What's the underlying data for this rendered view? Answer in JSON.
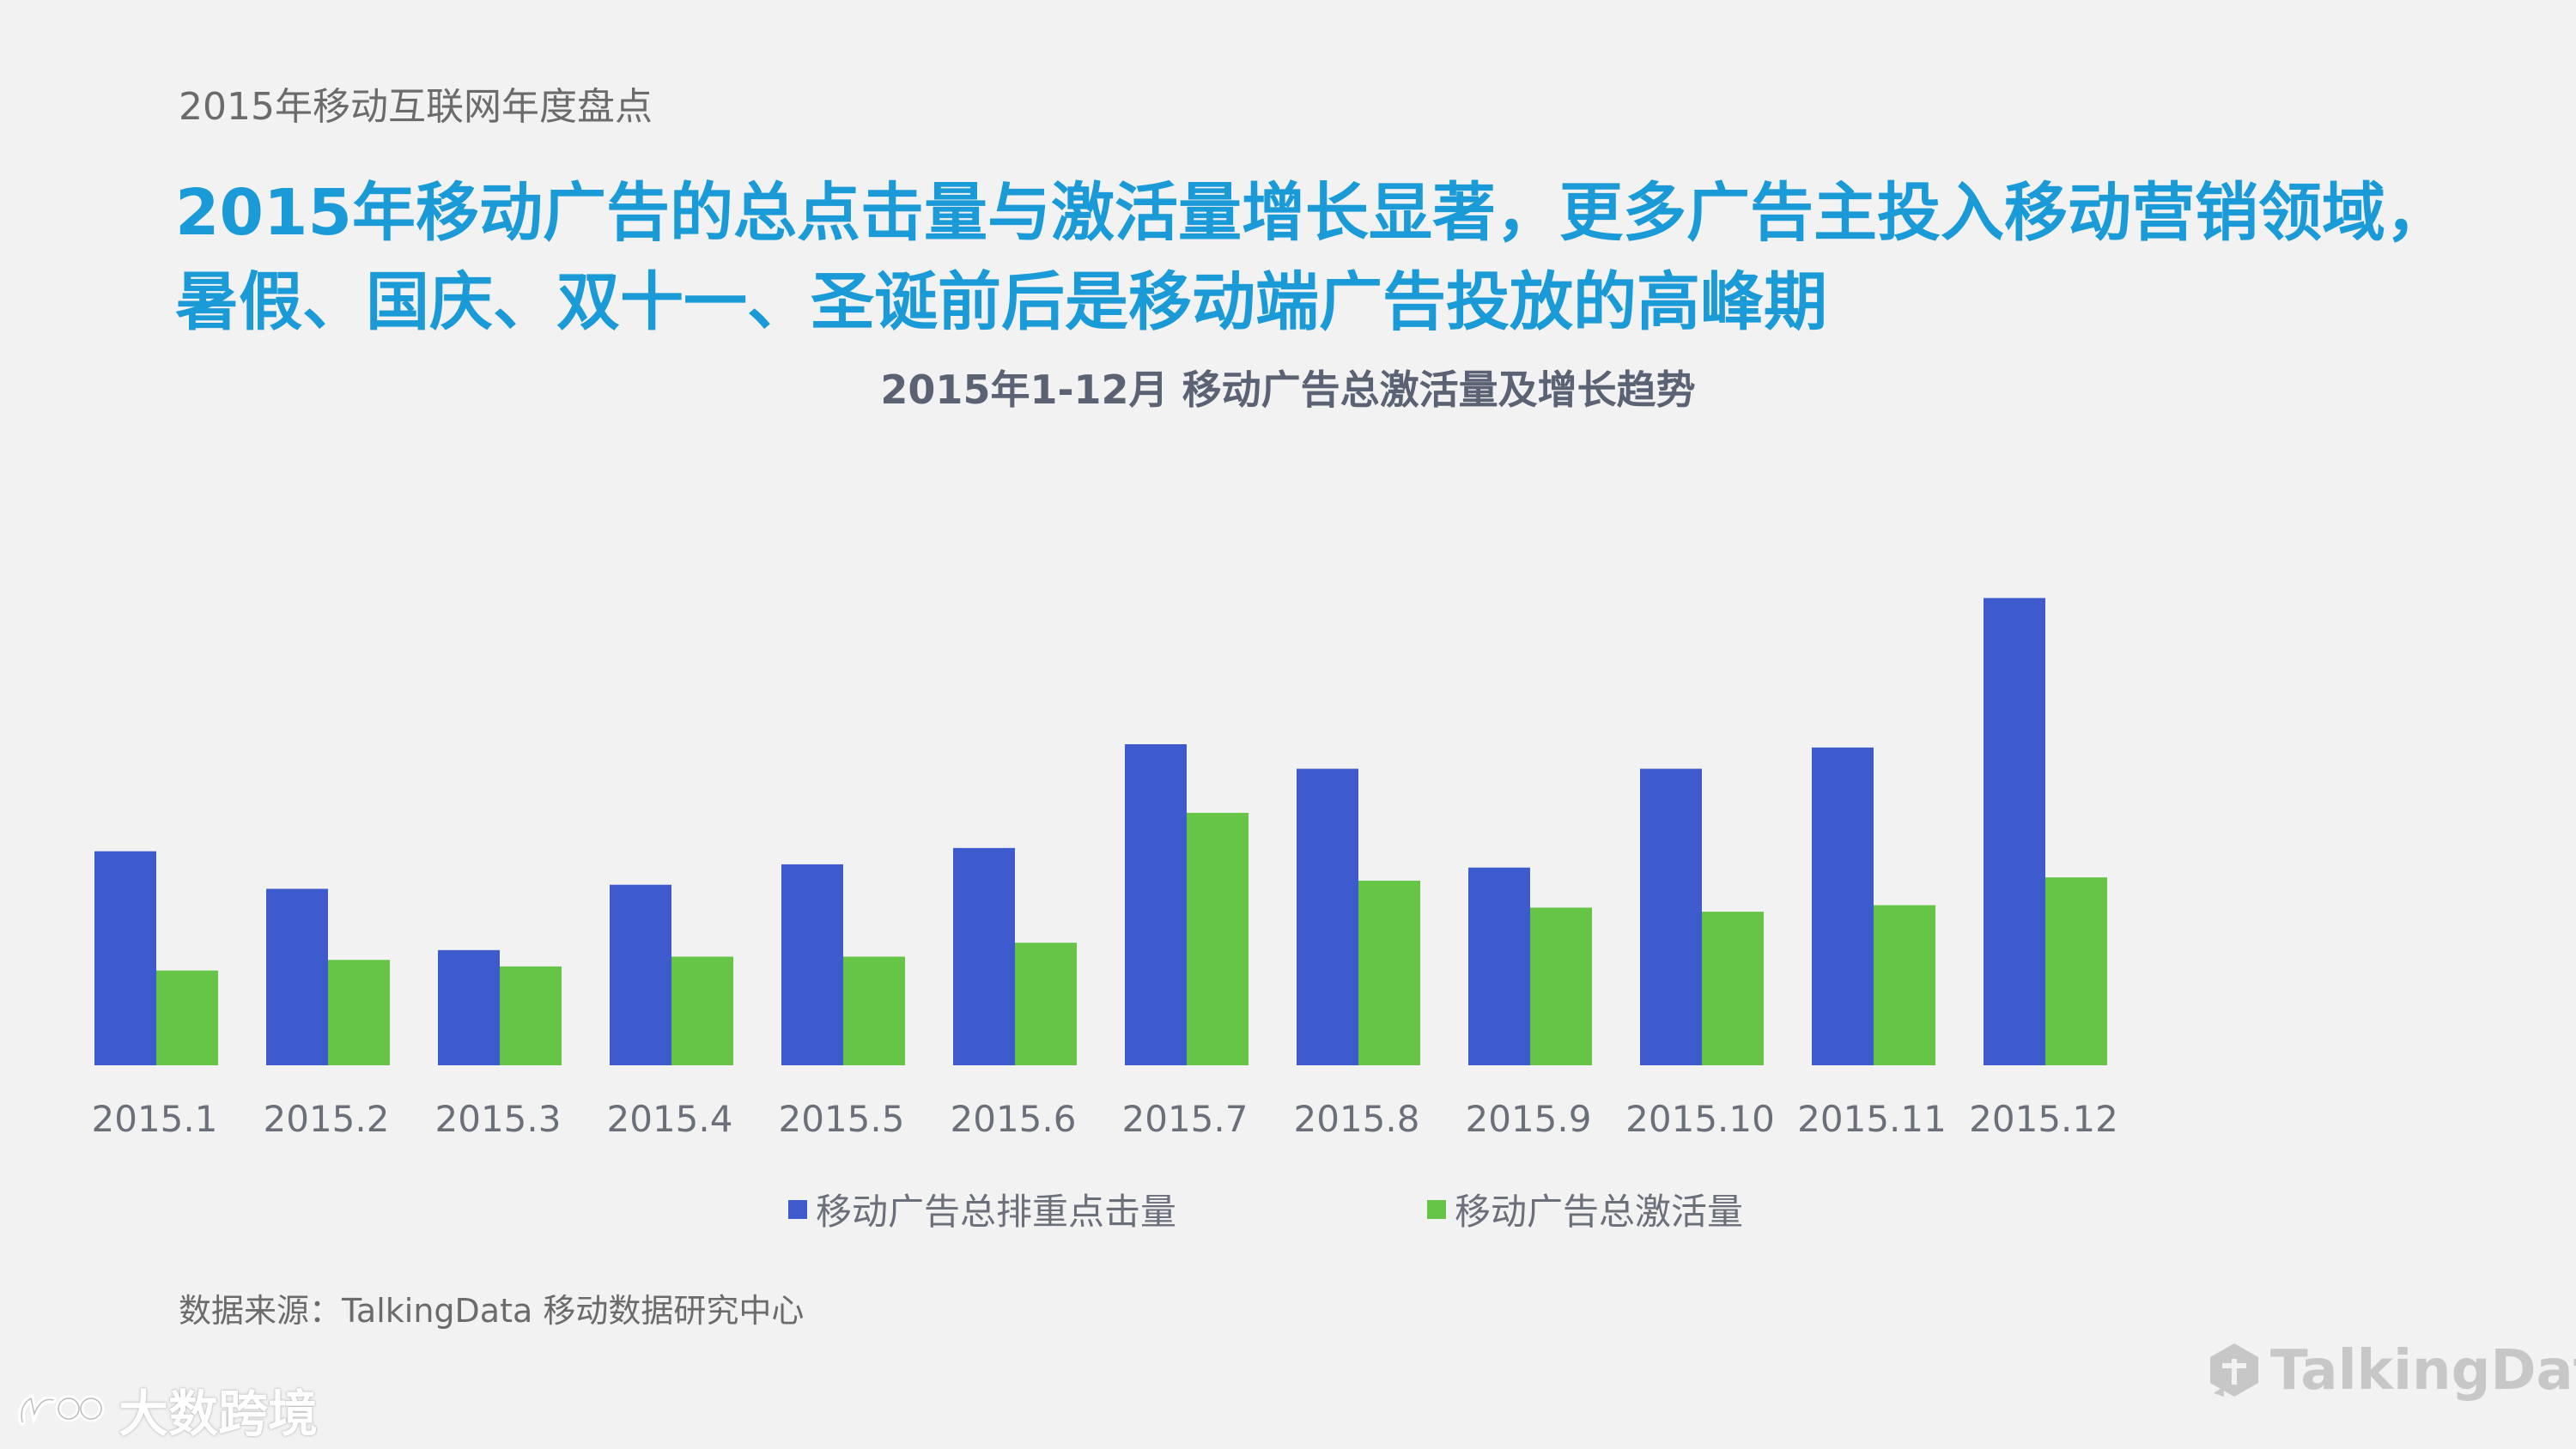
{
  "header": {
    "label": "2015年移动互联网年度盘点",
    "headline_line1": "2015年移动广告的总点击量与激活量增长显著，更多广告主投入移动营销领域，",
    "headline_line2": "暑假、国庆、双十一、圣诞前后是移动端广告投放的高峰期"
  },
  "chart_data": {
    "type": "bar",
    "title": "2015年1-12月 移动广告总激活量及增长趋势",
    "categories": [
      "2015.1",
      "2015.2",
      "2015.3",
      "2015.4",
      "2015.5",
      "2015.6",
      "2015.7",
      "2015.8",
      "2015.9",
      "2015.10",
      "2015.11",
      "2015.12"
    ],
    "series": [
      {
        "name": "移动广告总排重点击量",
        "color": "#3d5bcc",
        "values": [
          262,
          216,
          141,
          221,
          246,
          266,
          393,
          363,
          242,
          363,
          389,
          572
        ]
      },
      {
        "name": "移动广告总激活量",
        "color": "#66c446",
        "values": [
          116,
          129,
          121,
          133,
          133,
          150,
          309,
          226,
          193,
          188,
          196,
          230
        ]
      }
    ],
    "ylim": [
      0,
      600
    ],
    "grid": false,
    "legend_position": "bottom"
  },
  "footer": {
    "source": "数据来源：TalkingData 移动数据研究中心"
  },
  "watermarks": {
    "left_text": "大数跨境",
    "right_text": "TalkingData"
  }
}
